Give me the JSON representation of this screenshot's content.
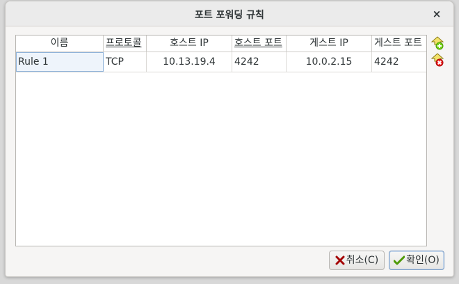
{
  "dialog": {
    "title": "포트 포워딩 규칙",
    "close_glyph": "×"
  },
  "table": {
    "columns": [
      "이름",
      "프로토콜",
      "호스트 IP",
      "호스트 포트",
      "게스트 IP",
      "게스트 포트"
    ],
    "rows": [
      {
        "name": "Rule 1",
        "protocol": "TCP",
        "host_ip": "10.13.19.4",
        "host_port": "4242",
        "guest_ip": "10.0.2.15",
        "guest_port": "4242"
      }
    ]
  },
  "side_actions": {
    "add_icon": "add-rule-icon",
    "remove_icon": "remove-rule-icon"
  },
  "buttons": {
    "cancel_label": "취소(C)",
    "ok_label": "확인(O)"
  },
  "colors": {
    "add_green": "#4e9a06",
    "remove_red": "#cc0000",
    "selected_outline": "#8fb3da"
  }
}
